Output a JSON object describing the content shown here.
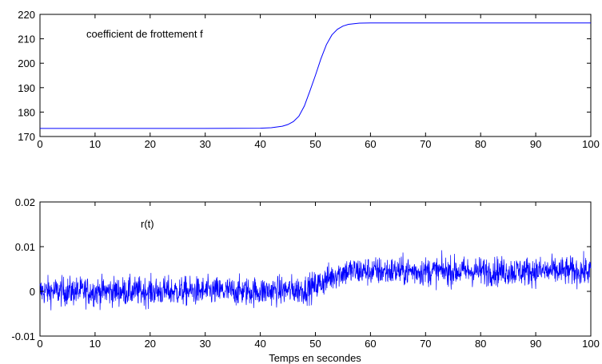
{
  "chart_data": [
    {
      "type": "line",
      "annotation": "coefficient de frottement f",
      "xlim": [
        0,
        100
      ],
      "ylim": [
        170,
        220
      ],
      "xticks": [
        0,
        10,
        20,
        30,
        40,
        50,
        60,
        70,
        80,
        90,
        100
      ],
      "yticks": [
        170,
        180,
        190,
        200,
        210,
        220
      ],
      "grid": false,
      "line_color": "#0000ff",
      "series": [
        {
          "x": [
            0,
            10,
            20,
            30,
            40,
            42,
            44,
            45,
            46,
            47,
            48,
            49,
            50,
            51,
            52,
            53,
            54,
            55,
            56,
            58,
            60,
            70,
            80,
            90,
            100
          ],
          "y": [
            173.3,
            173.3,
            173.3,
            173.3,
            173.4,
            173.6,
            174.2,
            174.9,
            176.1,
            178.3,
            182.5,
            188.6,
            195.0,
            201.8,
            207.6,
            211.6,
            213.9,
            215.2,
            215.9,
            216.4,
            216.5,
            216.5,
            216.5,
            216.5,
            216.5
          ]
        }
      ]
    },
    {
      "type": "line",
      "annotation": "r(t)",
      "xlabel": "Temps en secondes",
      "xlim": [
        0,
        100
      ],
      "ylim": [
        -0.01,
        0.02
      ],
      "xticks": [
        0,
        10,
        20,
        30,
        40,
        50,
        60,
        70,
        80,
        90,
        100
      ],
      "yticks": [
        -0.01,
        0,
        0.01,
        0.02
      ],
      "ytick_labels": [
        "-0.01",
        "0",
        "0.01",
        "0.02"
      ],
      "grid": false,
      "line_color": "#0000ff",
      "series": [
        {
          "mean_x": [
            0,
            40,
            48,
            50,
            52,
            54,
            56,
            60,
            100
          ],
          "mean_y": [
            0.0,
            0.0,
            0.0004,
            0.0012,
            0.0026,
            0.004,
            0.0045,
            0.0045,
            0.0045
          ],
          "noise_amplitude": 0.0042,
          "sample_count": 2000
        }
      ]
    }
  ]
}
